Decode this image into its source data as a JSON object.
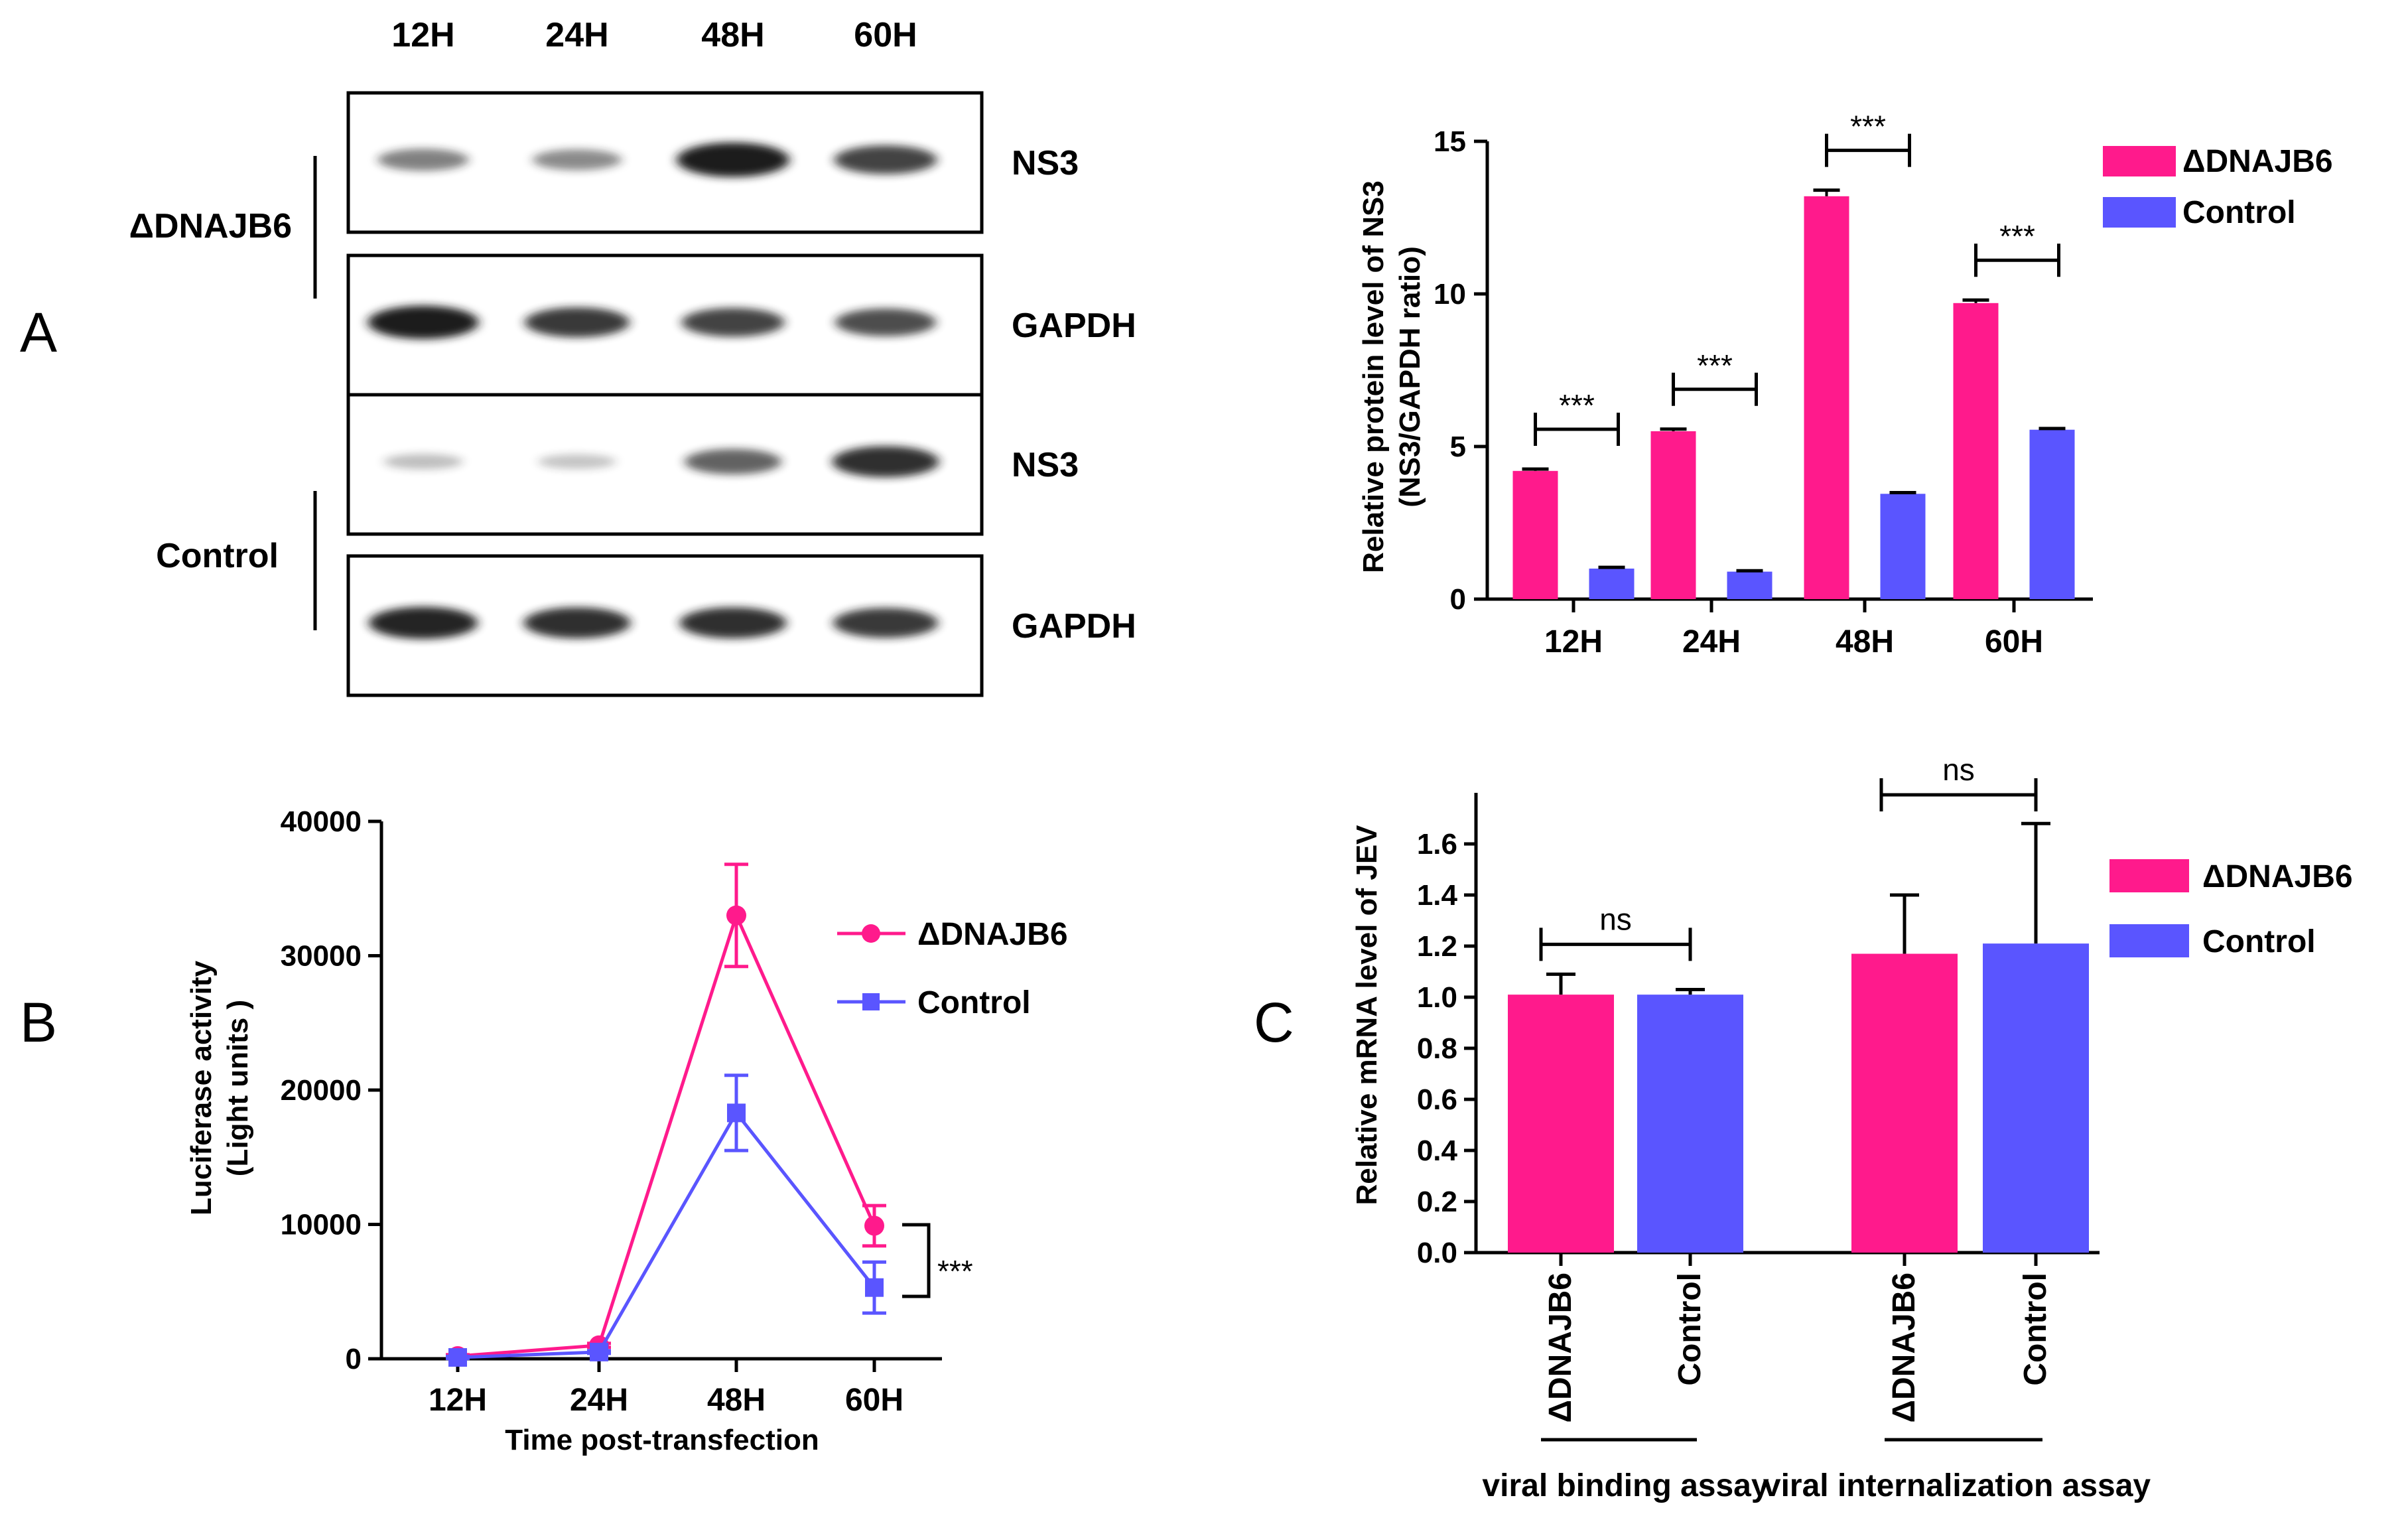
{
  "panels": {
    "a_letter": "A",
    "b_letter": "B",
    "c_letter": "C"
  },
  "blot": {
    "lanes": [
      "12H",
      "24H",
      "48H",
      "60H"
    ],
    "groups": [
      {
        "name": "ΔDNAJB6",
        "rows": [
          {
            "label": "NS3",
            "intensity": [
              0.45,
              0.4,
              1.0,
              0.75
            ]
          },
          {
            "label": "GAPDH",
            "intensity": [
              0.95,
              0.8,
              0.75,
              0.7
            ]
          }
        ]
      },
      {
        "name": "Control",
        "rows": [
          {
            "label": "NS3",
            "intensity": [
              0.15,
              0.12,
              0.6,
              0.85
            ]
          },
          {
            "label": "GAPDH",
            "intensity": [
              0.9,
              0.85,
              0.85,
              0.8
            ]
          }
        ]
      }
    ],
    "colors": {
      "band": "#1a1a1a",
      "frame": "#000000"
    }
  },
  "colors": {
    "dnajb6": "#ff1a8c",
    "control": "#5a55ff"
  },
  "chart_data": [
    {
      "id": "ns3-bar",
      "type": "bar",
      "categories": [
        "12H",
        "24H",
        "48H",
        "60H"
      ],
      "series": [
        {
          "name": "ΔDNAJB6",
          "values": [
            4.2,
            5.5,
            13.2,
            9.7
          ],
          "errors": [
            0.06,
            0.07,
            0.2,
            0.1
          ]
        },
        {
          "name": "Control",
          "values": [
            1.0,
            0.9,
            3.45,
            5.55
          ],
          "errors": [
            0.04,
            0.03,
            0.04,
            0.04
          ]
        }
      ],
      "ylabel_lines": [
        "Relative protein  level of NS3",
        "(NS3/GAPDH ratio)"
      ],
      "ylim": [
        0,
        15
      ],
      "yticks": [
        0,
        5,
        10,
        15
      ],
      "ytick_labels": [
        "0",
        "5",
        "10",
        "15"
      ],
      "significance": [
        "***",
        "***",
        "***",
        "***"
      ],
      "legend": [
        "ΔDNAJB6",
        "Control"
      ],
      "legend_position": "top-right",
      "grid": false
    },
    {
      "id": "luciferase-line",
      "type": "line",
      "categories": [
        "12H",
        "24H",
        "48H",
        "60H"
      ],
      "series": [
        {
          "name": "ΔDNAJB6",
          "marker": "circle",
          "values": [
            200,
            1000,
            33000,
            9900
          ],
          "errors": [
            100,
            150,
            3800,
            1500
          ]
        },
        {
          "name": "Control",
          "marker": "square",
          "values": [
            100,
            500,
            18300,
            5300
          ],
          "errors": [
            80,
            100,
            2800,
            1900
          ]
        }
      ],
      "xlabel": "Time post-transfection",
      "ylabel_lines": [
        "Luciferase activity",
        "(Light units )"
      ],
      "ylim": [
        0,
        40000
      ],
      "yticks": [
        0,
        10000,
        20000,
        30000,
        40000
      ],
      "ytick_labels": [
        "0",
        "10000",
        "20000",
        "30000",
        "40000"
      ],
      "significance": "***",
      "legend": [
        "ΔDNAJB6",
        "Control"
      ],
      "legend_position": "right",
      "grid": false
    },
    {
      "id": "mrna-bar",
      "type": "bar",
      "groups": [
        {
          "label": "viral binding assay",
          "bars": [
            "ΔDNAJB6",
            "Control"
          ],
          "values": [
            1.01,
            1.01
          ],
          "errors": [
            0.08,
            0.02
          ],
          "significance": "ns"
        },
        {
          "label": "viral internalization assay",
          "bars": [
            "ΔDNAJB6",
            "Control"
          ],
          "values": [
            1.17,
            1.21
          ],
          "errors": [
            0.23,
            0.47
          ],
          "significance": "ns"
        }
      ],
      "ylabel": "Relative  mRNA level of JEV",
      "ylim": [
        0,
        1.8
      ],
      "yticks": [
        0,
        0.2,
        0.4,
        0.6,
        0.8,
        1.0,
        1.2,
        1.4,
        1.6
      ],
      "ytick_labels": [
        "0.0",
        "0.2",
        "0.4",
        "0.6",
        "0.8",
        "1.0",
        "1.2",
        "1.4",
        "1.6"
      ],
      "legend": [
        "ΔDNAJB6",
        "Control"
      ],
      "legend_position": "right",
      "grid": false
    }
  ]
}
